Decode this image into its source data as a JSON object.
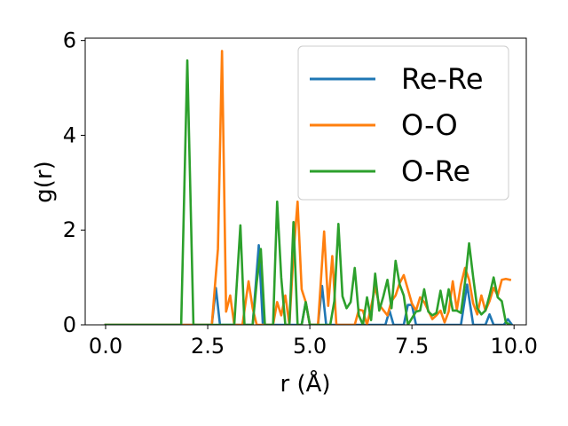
{
  "chart_data": {
    "type": "line",
    "title": "",
    "xlabel": "r (Å)",
    "ylabel": "g(r)",
    "xlim": [
      -0.5,
      10.3
    ],
    "ylim": [
      0,
      6.05
    ],
    "xticks": [
      0.0,
      2.5,
      5.0,
      7.5,
      10.0
    ],
    "xtick_labels": [
      "0.0",
      "2.5",
      "5.0",
      "7.5",
      "10.0"
    ],
    "yticks": [
      0,
      2,
      4,
      6
    ],
    "ytick_labels": [
      "0",
      "2",
      "4",
      "6"
    ],
    "grid": false,
    "legend_position": "top-right",
    "series": [
      {
        "name": "Re-Re",
        "color": "#1f77b4",
        "points": [
          [
            0,
            0
          ],
          [
            2.6,
            0
          ],
          [
            2.7,
            0.78
          ],
          [
            2.8,
            0
          ],
          [
            3.6,
            0
          ],
          [
            3.75,
            1.68
          ],
          [
            3.85,
            0
          ],
          [
            4.8,
            0
          ],
          [
            4.9,
            0.48
          ],
          [
            5.0,
            0
          ],
          [
            5.2,
            0
          ],
          [
            5.3,
            0.82
          ],
          [
            5.4,
            0
          ],
          [
            6.85,
            0
          ],
          [
            6.95,
            0.3
          ],
          [
            7.05,
            0
          ],
          [
            7.3,
            0
          ],
          [
            7.4,
            0.42
          ],
          [
            7.5,
            0.42
          ],
          [
            7.6,
            0
          ],
          [
            8.7,
            0
          ],
          [
            8.85,
            0.85
          ],
          [
            9.0,
            0
          ],
          [
            9.3,
            0
          ],
          [
            9.4,
            0.22
          ],
          [
            9.5,
            0
          ],
          [
            9.75,
            0
          ],
          [
            9.85,
            0.12
          ],
          [
            9.95,
            0
          ]
        ]
      },
      {
        "name": "O-O",
        "color": "#ff7f0e",
        "points": [
          [
            0,
            0
          ],
          [
            2.6,
            0
          ],
          [
            2.75,
            1.6
          ],
          [
            2.85,
            5.78
          ],
          [
            2.95,
            0.28
          ],
          [
            3.05,
            0.62
          ],
          [
            3.15,
            0
          ],
          [
            3.35,
            0
          ],
          [
            3.5,
            0.92
          ],
          [
            3.6,
            0.35
          ],
          [
            3.7,
            0
          ],
          [
            4.1,
            0
          ],
          [
            4.2,
            0.48
          ],
          [
            4.3,
            0.2
          ],
          [
            4.4,
            0.62
          ],
          [
            4.5,
            0
          ],
          [
            4.6,
            1.5
          ],
          [
            4.7,
            2.6
          ],
          [
            4.8,
            0.75
          ],
          [
            4.9,
            0.48
          ],
          [
            5.0,
            0
          ],
          [
            5.2,
            0
          ],
          [
            5.35,
            1.97
          ],
          [
            5.45,
            0.4
          ],
          [
            5.55,
            1.45
          ],
          [
            5.65,
            0
          ],
          [
            6.1,
            0
          ],
          [
            6.2,
            0.32
          ],
          [
            6.3,
            0.3
          ],
          [
            6.4,
            0
          ],
          [
            6.5,
            0.38
          ],
          [
            6.6,
            0.8
          ],
          [
            6.7,
            0.42
          ],
          [
            6.9,
            0.2
          ],
          [
            7.0,
            0.5
          ],
          [
            7.1,
            0.62
          ],
          [
            7.2,
            0.88
          ],
          [
            7.3,
            1.05
          ],
          [
            7.4,
            0.75
          ],
          [
            7.5,
            0.45
          ],
          [
            7.6,
            0.3
          ],
          [
            7.7,
            0.58
          ],
          [
            7.8,
            0.48
          ],
          [
            7.9,
            0.3
          ],
          [
            8.0,
            0.12
          ],
          [
            8.1,
            0.2
          ],
          [
            8.2,
            0.3
          ],
          [
            8.3,
            0.05
          ],
          [
            8.4,
            0.28
          ],
          [
            8.5,
            0.92
          ],
          [
            8.6,
            0.32
          ],
          [
            8.7,
            0.85
          ],
          [
            8.8,
            1.2
          ],
          [
            8.9,
            0.95
          ],
          [
            9.0,
            0.45
          ],
          [
            9.1,
            0.22
          ],
          [
            9.2,
            0.62
          ],
          [
            9.3,
            0.3
          ],
          [
            9.4,
            0.5
          ],
          [
            9.5,
            0.78
          ],
          [
            9.6,
            0.62
          ],
          [
            9.7,
            0.95
          ],
          [
            9.8,
            0.97
          ],
          [
            9.9,
            0.95
          ]
        ]
      },
      {
        "name": "O-Re",
        "color": "#2ca02c",
        "points": [
          [
            0,
            0
          ],
          [
            1.85,
            0
          ],
          [
            2.0,
            5.58
          ],
          [
            2.15,
            0
          ],
          [
            3.15,
            0
          ],
          [
            3.3,
            2.1
          ],
          [
            3.4,
            0
          ],
          [
            3.6,
            0
          ],
          [
            3.7,
            0.9
          ],
          [
            3.8,
            1.6
          ],
          [
            3.9,
            0
          ],
          [
            4.1,
            0
          ],
          [
            4.2,
            2.6
          ],
          [
            4.3,
            1.0
          ],
          [
            4.4,
            0
          ],
          [
            4.5,
            0
          ],
          [
            4.6,
            2.17
          ],
          [
            4.7,
            0
          ],
          [
            4.8,
            0
          ],
          [
            4.9,
            0.48
          ],
          [
            5.0,
            0
          ],
          [
            5.5,
            0
          ],
          [
            5.6,
            0.5
          ],
          [
            5.7,
            2.13
          ],
          [
            5.8,
            0.6
          ],
          [
            5.9,
            0.35
          ],
          [
            6.0,
            0.48
          ],
          [
            6.1,
            1.2
          ],
          [
            6.2,
            0.2
          ],
          [
            6.3,
            0
          ],
          [
            6.4,
            0.58
          ],
          [
            6.5,
            0.1
          ],
          [
            6.6,
            1.08
          ],
          [
            6.7,
            0.3
          ],
          [
            6.8,
            0.6
          ],
          [
            6.9,
            0.95
          ],
          [
            7.0,
            0.35
          ],
          [
            7.1,
            1.35
          ],
          [
            7.2,
            0.85
          ],
          [
            7.3,
            0.62
          ],
          [
            7.4,
            0
          ],
          [
            7.6,
            0.28
          ],
          [
            7.7,
            0.3
          ],
          [
            7.8,
            0.75
          ],
          [
            7.9,
            0.28
          ],
          [
            8.0,
            0.2
          ],
          [
            8.1,
            0.25
          ],
          [
            8.2,
            0.72
          ],
          [
            8.3,
            0.25
          ],
          [
            8.4,
            0.75
          ],
          [
            8.5,
            0.3
          ],
          [
            8.6,
            0.3
          ],
          [
            8.7,
            0.25
          ],
          [
            8.8,
            0.9
          ],
          [
            8.9,
            1.72
          ],
          [
            9.0,
            1.0
          ],
          [
            9.1,
            0.35
          ],
          [
            9.2,
            0.22
          ],
          [
            9.3,
            0.3
          ],
          [
            9.4,
            0.62
          ],
          [
            9.5,
            1.0
          ],
          [
            9.6,
            0.58
          ],
          [
            9.7,
            0.5
          ],
          [
            9.8,
            0.05
          ],
          [
            9.9,
            0
          ]
        ]
      }
    ]
  }
}
